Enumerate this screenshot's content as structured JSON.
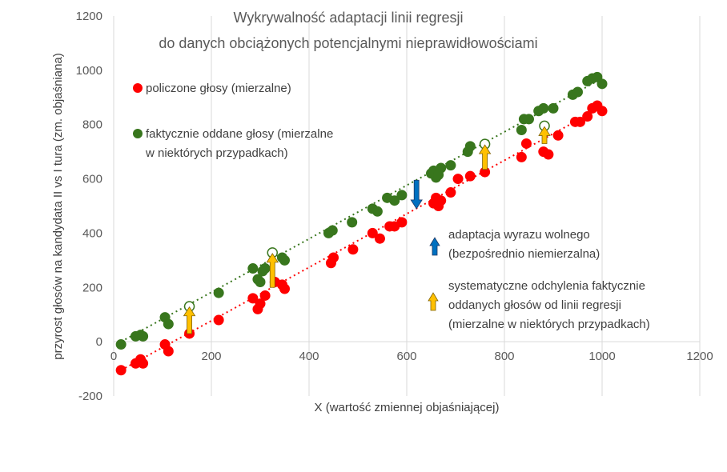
{
  "chart_data": {
    "type": "scatter",
    "title_lines": [
      "Wykrywalność adaptacji linii regresji",
      "do danych obciążonych potencjalnymi nieprawidłowościami"
    ],
    "xlabel": "X (wartość zmiennej objaśniającej)",
    "ylabel": "przyrost głosów na kandydata II vs I tura (zm. objaśniana)",
    "xlim": [
      0,
      1200
    ],
    "ylim": [
      -200,
      1200
    ],
    "x_ticks": [
      "0",
      "200",
      "400",
      "600",
      "800",
      "1000",
      "1200"
    ],
    "y_ticks": [
      "-200",
      "0",
      "200",
      "400",
      "600",
      "800",
      "1000",
      "1200"
    ],
    "grid": "vertical",
    "legend": [
      {
        "marker": "red-dot",
        "lines": [
          "policzone głosy (mierzalne)"
        ]
      },
      {
        "marker": "green-dot",
        "lines": [
          "faktycznie oddane głosy (mierzalne",
          "w niektórych przypadkach)"
        ]
      },
      {
        "marker": "blue-arrow",
        "lines": [
          "adaptacja wyrazu wolnego",
          "(bezpośrednio niemierzalna)"
        ]
      },
      {
        "marker": "yellow-arrow",
        "lines": [
          "systematyczne odchylenia faktycznie",
          "oddanych głosów od linii regresji",
          "(mierzalne w niektórych przypadkach)"
        ]
      }
    ],
    "colors": {
      "red": "#ff0000",
      "green": "#38761d",
      "blue": "#0070c0",
      "yellow": "#ffc000",
      "grid": "#d9d9d9",
      "text": "#595959"
    },
    "series": [
      {
        "key": "counted",
        "color": "#ff0000",
        "x": [
          15,
          45,
          55,
          60,
          105,
          112,
          155,
          215,
          285,
          295,
          300,
          310,
          330,
          345,
          350,
          445,
          450,
          490,
          530,
          545,
          565,
          575,
          590,
          655,
          660,
          665,
          670,
          690,
          705,
          730,
          760,
          835,
          845,
          880,
          890,
          910,
          945,
          955,
          970,
          980,
          990,
          1000
        ],
        "y": [
          -105,
          -80,
          -65,
          -80,
          -10,
          -35,
          30,
          80,
          160,
          120,
          140,
          170,
          220,
          210,
          195,
          290,
          310,
          340,
          400,
          380,
          425,
          425,
          440,
          510,
          530,
          500,
          520,
          550,
          600,
          610,
          625,
          680,
          730,
          700,
          690,
          760,
          810,
          810,
          830,
          860,
          870,
          850
        ]
      },
      {
        "key": "actual",
        "color": "#38761d",
        "x": [
          15,
          45,
          55,
          60,
          105,
          112,
          215,
          285,
          295,
          300,
          305,
          310,
          345,
          350,
          440,
          448,
          488,
          530,
          540,
          560,
          575,
          590,
          650,
          655,
          660,
          665,
          670,
          690,
          725,
          730,
          835,
          840,
          850,
          870,
          880,
          900,
          940,
          950,
          970,
          980,
          990,
          1000
        ],
        "y": [
          -10,
          20,
          25,
          20,
          90,
          65,
          180,
          270,
          230,
          220,
          260,
          270,
          310,
          300,
          400,
          410,
          440,
          490,
          480,
          530,
          520,
          540,
          620,
          630,
          605,
          615,
          640,
          650,
          700,
          720,
          780,
          820,
          820,
          850,
          860,
          860,
          910,
          920,
          960,
          970,
          975,
          950
        ]
      },
      {
        "key": "hidden",
        "color": "#38761d",
        "x": [
          155,
          325,
          760,
          882
        ],
        "y": [
          130,
          328,
          728,
          795
        ]
      }
    ],
    "trendlines": [
      {
        "key": "counted",
        "color": "#ff0000",
        "x": [
          15,
          1000
        ],
        "y": [
          -105,
          865
        ]
      },
      {
        "key": "actual",
        "color": "#38761d",
        "x": [
          15,
          1000
        ],
        "y": [
          0,
          970
        ]
      }
    ],
    "arrows": [
      {
        "key": "systematic",
        "color": "#ffc000",
        "x": 155,
        "y_from": 30,
        "y_to": 128
      },
      {
        "key": "systematic",
        "color": "#ffc000",
        "x": 325,
        "y_from": 200,
        "y_to": 325
      },
      {
        "key": "systematic",
        "color": "#ffc000",
        "x": 760,
        "y_from": 635,
        "y_to": 725
      },
      {
        "key": "systematic",
        "color": "#ffc000",
        "x": 882,
        "y_from": 730,
        "y_to": 792
      },
      {
        "key": "intercept",
        "color": "#0070c0",
        "x": 620,
        "y_from": 595,
        "y_to": 490
      }
    ]
  }
}
